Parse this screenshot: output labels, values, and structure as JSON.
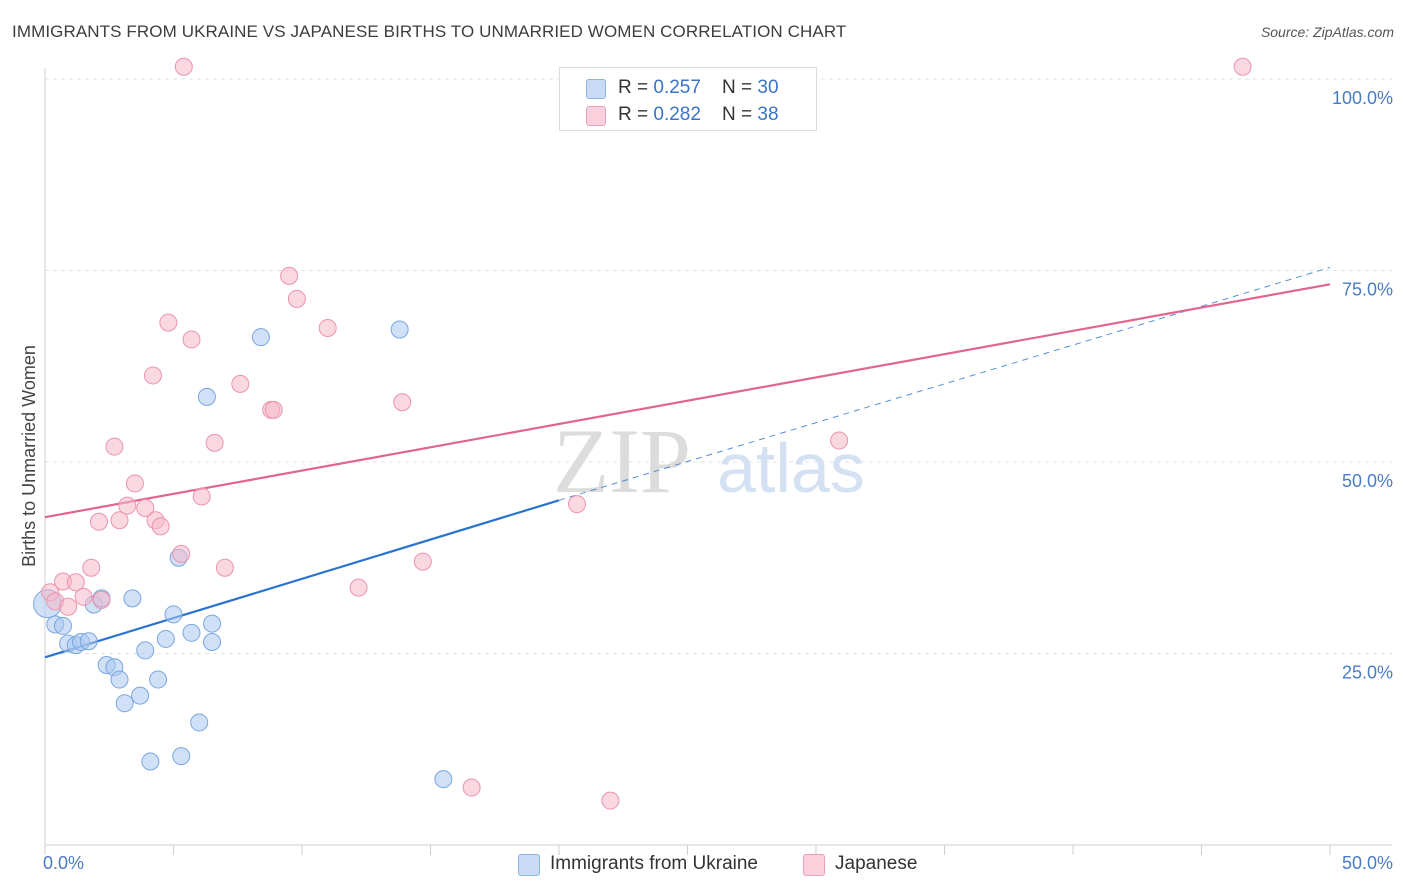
{
  "header": {
    "title": "IMMIGRANTS FROM UKRAINE VS JAPANESE BIRTHS TO UNMARRIED WOMEN CORRELATION CHART",
    "source": "Source: ZipAtlas.com"
  },
  "watermark": {
    "zip": "ZIP",
    "atlas": "atlas"
  },
  "legend": {
    "rows": [
      {
        "r_label": "R = ",
        "r_value": "0.257",
        "n_label": "N = ",
        "n_value": "30",
        "color": "#a9c8f0"
      },
      {
        "r_label": "R = ",
        "r_value": "0.282",
        "n_label": "N = ",
        "n_value": "38",
        "color": "#f5b8cb"
      }
    ]
  },
  "bottom_legend": [
    {
      "label": "Immigrants from Ukraine",
      "color": "#a9c8f0"
    },
    {
      "label": "Japanese",
      "color": "#f5b8cb"
    }
  ],
  "chart_data": {
    "type": "scatter",
    "title": "IMMIGRANTS FROM UKRAINE VS JAPANESE BIRTHS TO UNMARRIED WOMEN CORRELATION CHART",
    "xlabel": "",
    "ylabel": "Births to Unmarried Women",
    "xlim": [
      0,
      50
    ],
    "ylim": [
      0,
      100
    ],
    "x_tick_labels": [
      "0.0%",
      "50.0%"
    ],
    "y_ticks": [
      25,
      50,
      75,
      100
    ],
    "y_tick_labels": [
      "25.0%",
      "50.0%",
      "75.0%",
      "100.0%"
    ],
    "grid": true,
    "series": [
      {
        "name": "Immigrants from Ukraine",
        "color": "#a9c8f0",
        "stroke": "#7aa6e0",
        "line_color": "#2b73d0",
        "trend": {
          "x0": 0,
          "y0": 24.5,
          "x1": 20,
          "y1": 45,
          "dashed_to_x": 50,
          "dashed_to_y": 75.4
        },
        "points": [
          [
            0.1,
            31.5
          ],
          [
            0.4,
            28.8
          ],
          [
            0.7,
            28.6
          ],
          [
            0.9,
            26.3
          ],
          [
            1.2,
            26.1
          ],
          [
            1.4,
            26.5
          ],
          [
            1.7,
            26.6
          ],
          [
            1.9,
            31.4
          ],
          [
            2.2,
            32.2
          ],
          [
            2.4,
            23.5
          ],
          [
            2.7,
            23.2
          ],
          [
            2.9,
            21.6
          ],
          [
            3.1,
            18.5
          ],
          [
            3.4,
            32.2
          ],
          [
            3.7,
            19.5
          ],
          [
            3.9,
            25.4
          ],
          [
            4.1,
            10.9
          ],
          [
            4.4,
            21.6
          ],
          [
            4.7,
            26.9
          ],
          [
            5.0,
            30.1
          ],
          [
            5.2,
            37.5
          ],
          [
            5.3,
            11.6
          ],
          [
            5.7,
            27.7
          ],
          [
            6.0,
            16.0
          ],
          [
            6.3,
            58.5
          ],
          [
            6.5,
            26.5
          ],
          [
            6.5,
            28.9
          ],
          [
            8.4,
            66.3
          ],
          [
            13.8,
            67.3
          ],
          [
            15.5,
            8.6
          ]
        ]
      },
      {
        "name": "Japanese",
        "color": "#f5b8cb",
        "stroke": "#eb93ad",
        "line_color": "#e0668f",
        "trend": {
          "x0": 0,
          "y0": 42.8,
          "x1": 50,
          "y1": 73.2
        },
        "points": [
          [
            0.2,
            33.0
          ],
          [
            0.4,
            31.8
          ],
          [
            0.7,
            34.4
          ],
          [
            0.9,
            31.1
          ],
          [
            1.2,
            34.3
          ],
          [
            1.5,
            32.4
          ],
          [
            1.8,
            36.2
          ],
          [
            2.2,
            32.0
          ],
          [
            2.1,
            42.2
          ],
          [
            2.7,
            52.0
          ],
          [
            2.9,
            42.4
          ],
          [
            3.2,
            44.3
          ],
          [
            3.5,
            47.2
          ],
          [
            3.9,
            44.0
          ],
          [
            4.2,
            61.3
          ],
          [
            4.3,
            42.4
          ],
          [
            4.5,
            41.6
          ],
          [
            4.8,
            68.2
          ],
          [
            5.3,
            38.0
          ],
          [
            5.4,
            101.6
          ],
          [
            5.7,
            66.0
          ],
          [
            6.1,
            45.5
          ],
          [
            6.6,
            52.5
          ],
          [
            7.0,
            36.2
          ],
          [
            7.6,
            60.2
          ],
          [
            8.8,
            56.8
          ],
          [
            8.9,
            56.8
          ],
          [
            9.5,
            74.3
          ],
          [
            9.8,
            71.3
          ],
          [
            11.0,
            67.5
          ],
          [
            12.2,
            33.6
          ],
          [
            13.9,
            57.8
          ],
          [
            14.7,
            37.0
          ],
          [
            16.6,
            7.5
          ],
          [
            20.7,
            44.5
          ],
          [
            22.0,
            5.8
          ],
          [
            30.9,
            52.8
          ],
          [
            46.6,
            101.6
          ]
        ]
      }
    ]
  }
}
